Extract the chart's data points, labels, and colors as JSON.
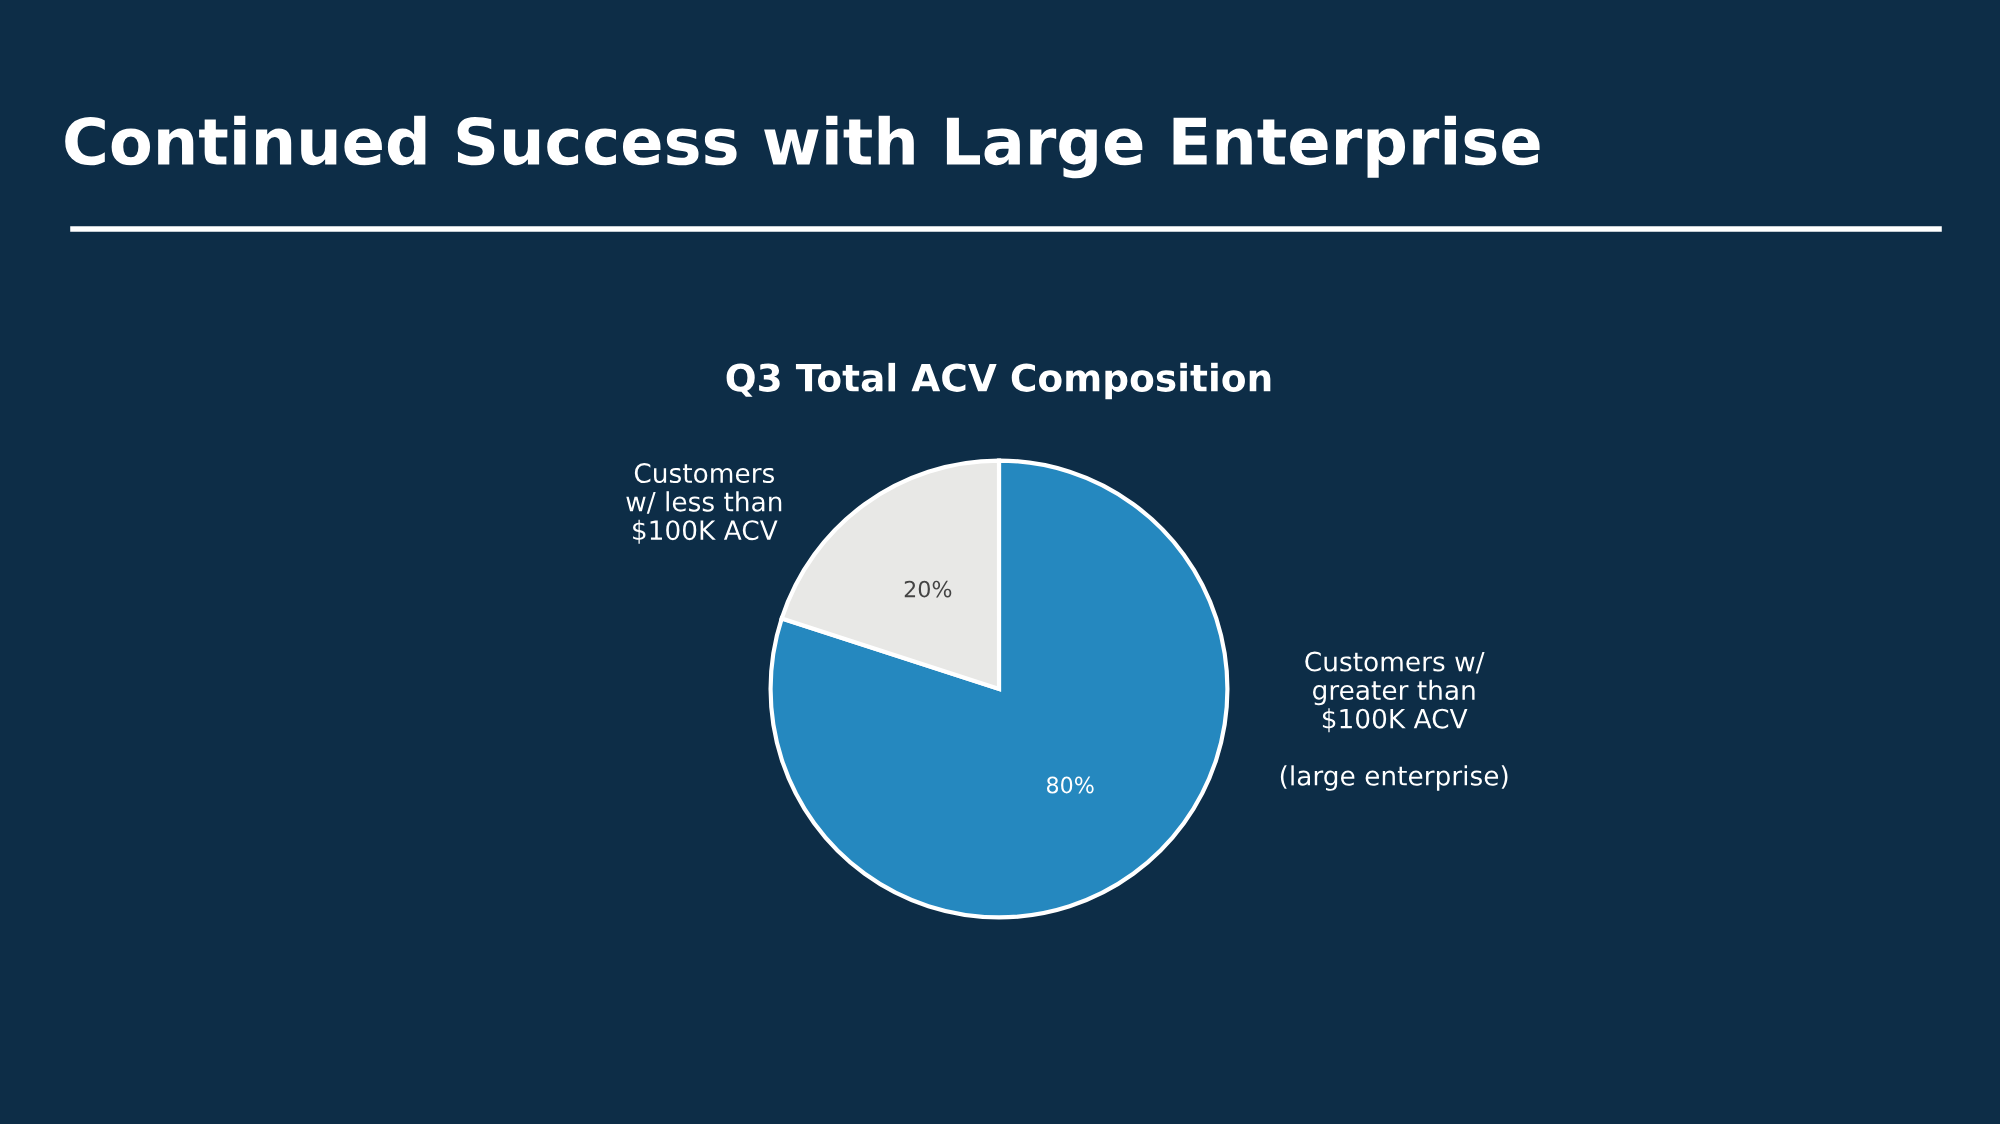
{
  "chart_data": {
    "type": "pie",
    "title": "Continued Success with Large Enterprise",
    "subtitle": "Q3 Total ACV Composition",
    "categories": [
      "Customers w/\ngreater than\n$100K ACV\n\n(large enterprise)",
      "Customers\nw/ less than\n$100K ACV"
    ],
    "values": [
      80,
      20
    ],
    "colors": [
      "#2588bf",
      "#e8e8e6"
    ],
    "value_labels": [
      "80%",
      "20%"
    ]
  }
}
